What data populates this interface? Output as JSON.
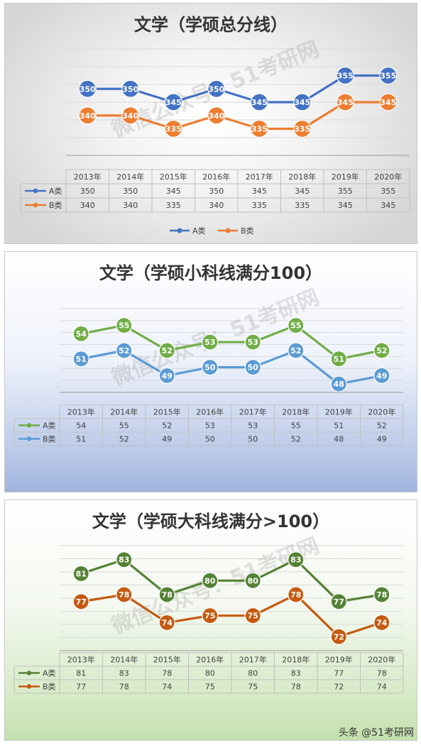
{
  "watermark": "微信公众号：51考研网",
  "footer": "头条 @51考研网",
  "chart_data": [
    {
      "type": "line",
      "title": "文学（学硕总分线）",
      "categories": [
        "2013年",
        "2014年",
        "2015年",
        "2016年",
        "2017年",
        "2018年",
        "2019年",
        "2020年"
      ],
      "series": [
        {
          "name": "A类",
          "values": [
            350,
            350,
            345,
            350,
            345,
            345,
            355,
            355
          ],
          "color": "#4472c4"
        },
        {
          "name": "B类",
          "values": [
            340,
            340,
            335,
            340,
            335,
            335,
            345,
            345
          ],
          "color": "#ed7d31"
        }
      ],
      "ylim": [
        325,
        365
      ],
      "grid": true,
      "legend": "bottom"
    },
    {
      "type": "line",
      "title": "文学（学硕小科线满分100）",
      "categories": [
        "2013年",
        "2014年",
        "2015年",
        "2016年",
        "2017年",
        "2018年",
        "2019年",
        "2020年"
      ],
      "series": [
        {
          "name": "A类",
          "values": [
            54,
            55,
            52,
            53,
            53,
            55,
            51,
            52
          ],
          "color": "#70ad47"
        },
        {
          "name": "B类",
          "values": [
            51,
            52,
            49,
            50,
            50,
            52,
            48,
            49
          ],
          "color": "#5b9bd5"
        }
      ],
      "ylim": [
        47,
        57
      ],
      "grid": true
    },
    {
      "type": "line",
      "title": "文学（学硕大科线满分>100）",
      "categories": [
        "2013年",
        "2014年",
        "2015年",
        "2016年",
        "2017年",
        "2018年",
        "2019年",
        "2020年"
      ],
      "series": [
        {
          "name": "A类",
          "values": [
            81,
            83,
            78,
            80,
            80,
            83,
            77,
            78
          ],
          "color": "#548235"
        },
        {
          "name": "B类",
          "values": [
            77,
            78,
            74,
            75,
            75,
            78,
            72,
            74
          ],
          "color": "#c55a11"
        }
      ],
      "ylim": [
        70,
        85
      ],
      "grid": true
    }
  ]
}
